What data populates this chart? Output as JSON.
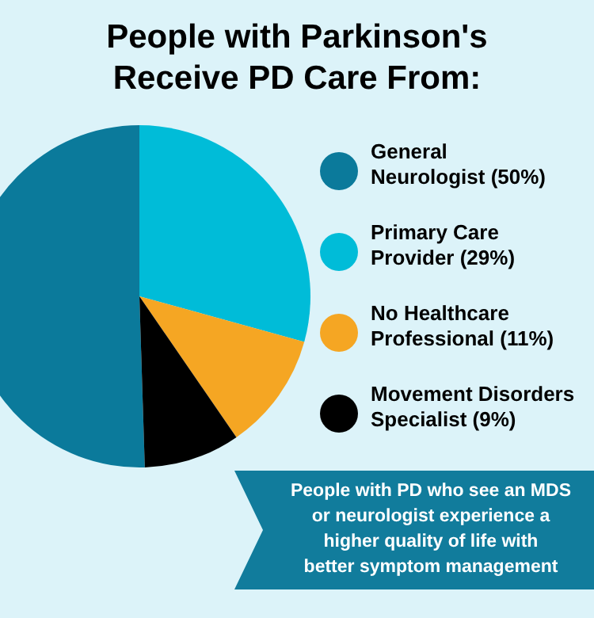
{
  "chart_data": {
    "type": "pie",
    "title": "People with Parkinson's Receive PD Care From:",
    "categories": [
      "General Neurologist (50%)",
      "Primary Care Provider (29%)",
      "No Healthcare Professional (11%)",
      "Movement Disorders Specialist (9%)"
    ],
    "values": [
      50,
      29,
      11,
      9
    ],
    "colors": [
      "#0b7a9b",
      "#00bcd8",
      "#f5a623",
      "#000000"
    ],
    "legend": "right",
    "annotations": [
      "People with PD who see an MDS or neurologist experience a higher quality of life with better symptom management"
    ]
  }
}
